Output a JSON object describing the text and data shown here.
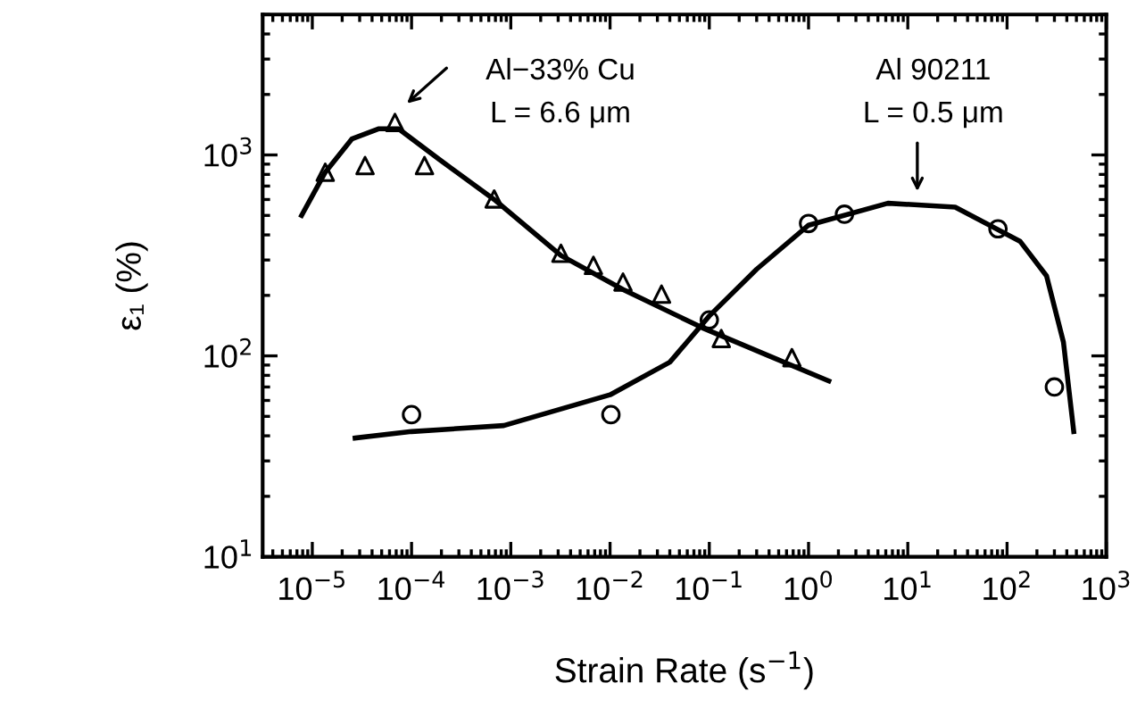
{
  "chart_data": {
    "type": "scatter",
    "xlabel": "Strain Rate (s$^{−1}$)",
    "ylabel": "ε₁ (%)",
    "log": "xy",
    "grid": false,
    "legend": false,
    "xlim": [
      3.16e-06,
      1000
    ],
    "ylim": [
      10,
      5000
    ],
    "xticks": [
      {
        "value": 1e-05,
        "label": "10$^{−5}$"
      },
      {
        "value": 0.0001,
        "label": "10$^{−4}$"
      },
      {
        "value": 0.001,
        "label": "10$^{−3}$"
      },
      {
        "value": 0.01,
        "label": "10$^{−2}$"
      },
      {
        "value": 0.1,
        "label": "10$^{−1}$"
      },
      {
        "value": 1,
        "label": "10$^{0}$"
      },
      {
        "value": 10,
        "label": "10$^{1}$"
      },
      {
        "value": 100,
        "label": "10$^{2}$"
      },
      {
        "value": 1000,
        "label": "10$^{3}$"
      }
    ],
    "yticks": [
      {
        "value": 10,
        "label": "10$^{1}$"
      },
      {
        "value": 100,
        "label": "10$^{2}$"
      },
      {
        "value": 1000,
        "label": "10$^{3}$"
      }
    ],
    "series": [
      {
        "marker": "triangle",
        "color": "#000000",
        "x": [
          1.35e-05,
          3.4e-05,
          6.8e-05,
          0.000135,
          0.00068,
          0.0032,
          0.0068,
          0.0135,
          0.033,
          0.132,
          0.68
        ],
        "values": [
          820,
          885,
          1450,
          885,
          604,
          324,
          282,
          233,
          203,
          122,
          98
        ]
      },
      {
        "marker": "circle",
        "color": "#000000",
        "x": [
          0.0001,
          0.0102,
          0.1,
          1,
          2.3,
          81,
          300
        ],
        "values": [
          51,
          51,
          151,
          456,
          507,
          429,
          70
        ]
      },
      {
        "type": "line",
        "marker": "none",
        "line_style": "solid",
        "color": "#000000",
        "x": [
          7.8e-06,
          1.35e-05,
          2.5e-05,
          4.7e-05,
          7.4e-05,
          0.00019,
          0.00068,
          0.0032,
          0.0135,
          0.085,
          0.4,
          1.6
        ],
        "values": [
          500,
          820,
          1200,
          1350,
          1350,
          950,
          600,
          316,
          214,
          138,
          100,
          75
        ]
      },
      {
        "type": "line",
        "marker": "none",
        "line_style": "solid",
        "color": "#000000",
        "x": [
          2.7e-05,
          0.0001,
          0.00085,
          0.01,
          0.04,
          0.1,
          0.3,
          1,
          6.3,
          30,
          135,
          250,
          370,
          470
        ],
        "values": [
          39,
          42,
          45,
          64,
          93,
          158,
          270,
          447,
          575,
          550,
          372,
          250,
          117,
          42
        ]
      }
    ],
    "annotations": [
      "Al−33% Cu\nL = 6.6 μm",
      "Al 90211\nL = 0.5 μm"
    ]
  }
}
